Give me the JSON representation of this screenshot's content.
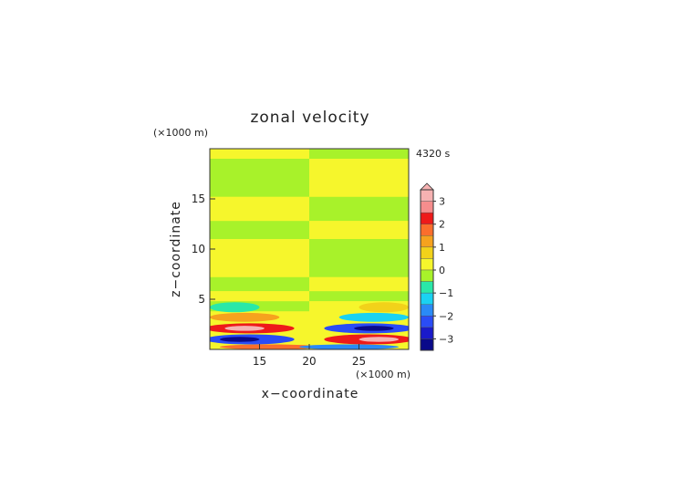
{
  "chart_data": {
    "type": "heatmap",
    "title": "zonal velocity",
    "time_label": "4320 s",
    "xlabel": "x−coordinate",
    "ylabel": "z−coordinate",
    "x_unit": "(×1000 m)",
    "y_unit": "(×1000 m)",
    "xlim": [
      10,
      30
    ],
    "ylim": [
      0,
      20
    ],
    "x_ticks": [
      15,
      20,
      25
    ],
    "y_ticks": [
      5,
      10,
      15
    ],
    "colorbar": {
      "ticks": [
        3,
        2,
        1,
        0,
        -1,
        -2,
        -3
      ],
      "tick_labels": [
        "3",
        "2",
        "1",
        "0",
        "−1",
        "−2",
        "−3"
      ],
      "levels": [
        {
          "from": 3.0,
          "to": 3.5,
          "color": "#f6b2b2"
        },
        {
          "from": 2.5,
          "to": 3.0,
          "color": "#f68d8d"
        },
        {
          "from": 2.0,
          "to": 2.5,
          "color": "#ee1a1a"
        },
        {
          "from": 1.5,
          "to": 2.0,
          "color": "#fb6e2c"
        },
        {
          "from": 1.0,
          "to": 1.5,
          "color": "#f6a21e"
        },
        {
          "from": 0.5,
          "to": 1.0,
          "color": "#f2d21a"
        },
        {
          "from": 0.0,
          "to": 0.5,
          "color": "#f6f62c"
        },
        {
          "from": -0.5,
          "to": 0.0,
          "color": "#a8f22a"
        },
        {
          "from": -1.0,
          "to": -0.5,
          "color": "#2ae8a8"
        },
        {
          "from": -1.5,
          "to": -1.0,
          "color": "#1ad2f2"
        },
        {
          "from": -2.0,
          "to": -1.5,
          "color": "#2a8af6"
        },
        {
          "from": -2.5,
          "to": -2.0,
          "color": "#2a4cf6"
        },
        {
          "from": -3.0,
          "to": -2.5,
          "color": "#1a1aca"
        },
        {
          "from": -3.5,
          "to": -3.0,
          "color": "#0a0a8a"
        }
      ]
    },
    "bands": [
      {
        "z": [
          19.0,
          20.0
        ],
        "left": 0.2,
        "right": -0.2
      },
      {
        "z": [
          15.2,
          19.0
        ],
        "left": -0.2,
        "right": 0.2
      },
      {
        "z": [
          12.8,
          15.2
        ],
        "left": 0.2,
        "right": -0.2
      },
      {
        "z": [
          11.0,
          12.8
        ],
        "left": -0.2,
        "right": 0.2
      },
      {
        "z": [
          7.2,
          11.0
        ],
        "left": 0.2,
        "right": -0.2
      },
      {
        "z": [
          5.8,
          7.2
        ],
        "left": -0.2,
        "right": 0.2
      },
      {
        "z": [
          4.8,
          5.8
        ],
        "left": 0.2,
        "right": -0.2
      },
      {
        "z": [
          3.8,
          4.8
        ],
        "left": -0.2,
        "right": 0.2
      }
    ],
    "features": [
      {
        "x": 12.5,
        "z": 4.2,
        "rx": 2.5,
        "rz": 0.5,
        "value": -0.8
      },
      {
        "x": 27.5,
        "z": 4.2,
        "rx": 2.5,
        "rz": 0.5,
        "value": 0.8
      },
      {
        "x": 13.5,
        "z": 3.2,
        "rx": 3.5,
        "rz": 0.45,
        "value": 1.2
      },
      {
        "x": 26.5,
        "z": 3.2,
        "rx": 3.5,
        "rz": 0.45,
        "value": -1.2
      },
      {
        "x": 14.0,
        "z": 2.1,
        "rx": 4.5,
        "rz": 0.5,
        "value": 2.2
      },
      {
        "x": 26.0,
        "z": 2.1,
        "rx": 4.5,
        "rz": 0.5,
        "value": -2.2
      },
      {
        "x": 13.5,
        "z": 2.1,
        "rx": 2.0,
        "rz": 0.25,
        "value": 3.2
      },
      {
        "x": 26.5,
        "z": 2.1,
        "rx": 2.0,
        "rz": 0.25,
        "value": -3.2
      },
      {
        "x": 14.0,
        "z": 1.0,
        "rx": 4.5,
        "rz": 0.5,
        "value": -2.4
      },
      {
        "x": 26.0,
        "z": 1.0,
        "rx": 4.5,
        "rz": 0.5,
        "value": 2.4
      },
      {
        "x": 13.0,
        "z": 1.0,
        "rx": 2.0,
        "rz": 0.25,
        "value": -3.2
      },
      {
        "x": 27.0,
        "z": 1.0,
        "rx": 2.0,
        "rz": 0.25,
        "value": 3.2
      },
      {
        "x": 16.0,
        "z": 0.25,
        "rx": 5.0,
        "rz": 0.25,
        "value": 1.8
      },
      {
        "x": 24.0,
        "z": 0.25,
        "rx": 5.0,
        "rz": 0.25,
        "value": -1.8
      }
    ]
  }
}
